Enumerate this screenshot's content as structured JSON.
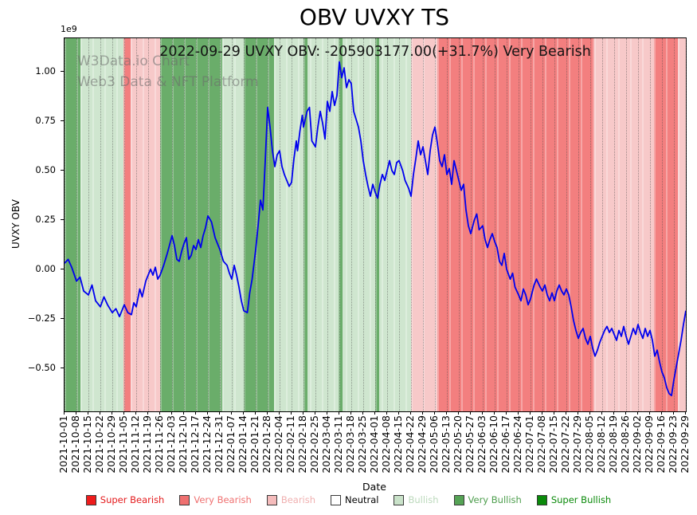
{
  "subtitle": "2022-09-29 UVXY OBV: -205903177.00(+31.7%) Very Bearish",
  "watermark": {
    "line1": "W3Data.io Chart",
    "line2": "Web3 Data & NFT Platform"
  },
  "legend": [
    {
      "label": "Super Bearish",
      "color": "#ee1c1c",
      "text_color": "#e41a1c"
    },
    {
      "label": "Very Bearish",
      "color": "#ef7070",
      "text_color": "#ef7070"
    },
    {
      "label": "Bearish",
      "color": "#f5bcbc",
      "text_color": "#f0b0b0"
    },
    {
      "label": "Neutral",
      "color": "#ffffff",
      "text_color": "#000000"
    },
    {
      "label": "Bullish",
      "color": "#c9e2c9",
      "text_color": "#bcd9bc"
    },
    {
      "label": "Very Bullish",
      "color": "#55a355",
      "text_color": "#4d9e4d"
    },
    {
      "label": "Super Bullish",
      "color": "#0a8a0a",
      "text_color": "#0a8a0a"
    }
  ],
  "chart_data": {
    "type": "line",
    "title": "OBV UVXY TS",
    "xlabel": "Date",
    "ylabel": "UVXY OBV",
    "y_unit": "1e9",
    "ylim": [
      -0.72,
      1.17
    ],
    "yticks": [
      1.0,
      0.75,
      0.5,
      0.25,
      0.0,
      -0.25,
      -0.5
    ],
    "grid": "vertical-dotted",
    "legend_position": "bottom",
    "line_color": "#0000ee",
    "x_tick_labels": [
      "2021-10-01",
      "2021-10-08",
      "2021-10-15",
      "2021-10-22",
      "2021-10-29",
      "2021-11-05",
      "2021-11-12",
      "2021-11-19",
      "2021-11-26",
      "2021-12-03",
      "2021-12-10",
      "2021-12-17",
      "2021-12-24",
      "2021-12-31",
      "2022-01-07",
      "2022-01-14",
      "2022-01-21",
      "2022-01-28",
      "2022-02-04",
      "2022-02-11",
      "2022-02-18",
      "2022-02-25",
      "2022-03-04",
      "2022-03-11",
      "2022-03-18",
      "2022-03-25",
      "2022-04-01",
      "2022-04-08",
      "2022-04-15",
      "2022-04-22",
      "2022-04-29",
      "2022-05-06",
      "2022-05-13",
      "2022-05-20",
      "2022-05-27",
      "2022-06-03",
      "2022-06-10",
      "2022-06-17",
      "2022-06-24",
      "2022-07-01",
      "2022-07-08",
      "2022-07-15",
      "2022-07-22",
      "2022-07-29",
      "2022-08-05",
      "2022-08-12",
      "2022-08-19",
      "2022-08-26",
      "2022-09-02",
      "2022-09-09",
      "2022-09-16",
      "2022-09-23",
      "2022-09-29"
    ],
    "latest": {
      "date": "2022-09-29",
      "obv": -205903177.0,
      "change_pct": 31.7,
      "sentiment": "Very Bearish"
    },
    "sentiment_colors": {
      "super_bearish": "#ee1c1c",
      "very_bearish": "#f37f7f",
      "bearish": "#f7c9c9",
      "neutral": "#ffffff",
      "bullish": "#cfe6cf",
      "very_bullish": "#6aad6a",
      "super_bullish": "#0a8a0a"
    },
    "bands": [
      {
        "start": 0.0,
        "end": 1.3,
        "sentiment": "very_bullish"
      },
      {
        "start": 1.3,
        "end": 4.9,
        "sentiment": "bullish"
      },
      {
        "start": 4.9,
        "end": 5.5,
        "sentiment": "very_bearish"
      },
      {
        "start": 5.5,
        "end": 8.0,
        "sentiment": "bearish"
      },
      {
        "start": 8.0,
        "end": 13.2,
        "sentiment": "very_bullish"
      },
      {
        "start": 13.2,
        "end": 15.0,
        "sentiment": "bullish"
      },
      {
        "start": 15.0,
        "end": 17.5,
        "sentiment": "very_bullish"
      },
      {
        "start": 17.5,
        "end": 29.0,
        "sentiment": "bullish"
      },
      {
        "start": 20.0,
        "end": 20.35,
        "sentiment": "very_bullish"
      },
      {
        "start": 22.9,
        "end": 23.25,
        "sentiment": "very_bullish"
      },
      {
        "start": 26.0,
        "end": 26.3,
        "sentiment": "very_bullish"
      },
      {
        "start": 29.0,
        "end": 31.2,
        "sentiment": "bearish"
      },
      {
        "start": 31.2,
        "end": 44.3,
        "sentiment": "very_bearish"
      },
      {
        "start": 44.3,
        "end": 49.3,
        "sentiment": "bearish"
      },
      {
        "start": 49.3,
        "end": 51.3,
        "sentiment": "very_bearish"
      },
      {
        "start": 51.3,
        "end": 52.0,
        "sentiment": "bearish"
      }
    ],
    "series": [
      {
        "name": "UVXY OBV (1e9)",
        "points": [
          [
            0,
            0.03
          ],
          [
            0.3,
            0.05
          ],
          [
            0.6,
            0.01
          ],
          [
            1,
            -0.06
          ],
          [
            1.3,
            -0.04
          ],
          [
            1.6,
            -0.11
          ],
          [
            2,
            -0.13
          ],
          [
            2.3,
            -0.08
          ],
          [
            2.6,
            -0.16
          ],
          [
            3,
            -0.19
          ],
          [
            3.3,
            -0.14
          ],
          [
            3.6,
            -0.18
          ],
          [
            4,
            -0.22
          ],
          [
            4.3,
            -0.2
          ],
          [
            4.6,
            -0.24
          ],
          [
            5,
            -0.18
          ],
          [
            5.3,
            -0.22
          ],
          [
            5.6,
            -0.23
          ],
          [
            5.8,
            -0.17
          ],
          [
            6,
            -0.19
          ],
          [
            6.3,
            -0.1
          ],
          [
            6.5,
            -0.14
          ],
          [
            6.8,
            -0.06
          ],
          [
            7,
            -0.03
          ],
          [
            7.2,
            0
          ],
          [
            7.4,
            -0.03
          ],
          [
            7.6,
            0.01
          ],
          [
            7.8,
            -0.05
          ],
          [
            8,
            -0.03
          ],
          [
            8.3,
            0.02
          ],
          [
            8.6,
            0.08
          ],
          [
            9,
            0.17
          ],
          [
            9.2,
            0.12
          ],
          [
            9.4,
            0.05
          ],
          [
            9.6,
            0.04
          ],
          [
            9.8,
            0.09
          ],
          [
            10,
            0.13
          ],
          [
            10.2,
            0.16
          ],
          [
            10.4,
            0.05
          ],
          [
            10.6,
            0.07
          ],
          [
            10.8,
            0.12
          ],
          [
            11,
            0.1
          ],
          [
            11.2,
            0.15
          ],
          [
            11.4,
            0.11
          ],
          [
            11.6,
            0.17
          ],
          [
            11.8,
            0.21
          ],
          [
            12,
            0.27
          ],
          [
            12.3,
            0.24
          ],
          [
            12.6,
            0.16
          ],
          [
            13,
            0.1
          ],
          [
            13.3,
            0.04
          ],
          [
            13.6,
            0.02
          ],
          [
            13.8,
            -0.02
          ],
          [
            14,
            -0.05
          ],
          [
            14.2,
            0.02
          ],
          [
            14.4,
            -0.03
          ],
          [
            14.6,
            -0.09
          ],
          [
            14.8,
            -0.16
          ],
          [
            15,
            -0.21
          ],
          [
            15.3,
            -0.22
          ],
          [
            15.5,
            -0.12
          ],
          [
            15.7,
            -0.05
          ],
          [
            16,
            0.1
          ],
          [
            16.2,
            0.22
          ],
          [
            16.4,
            0.35
          ],
          [
            16.6,
            0.3
          ],
          [
            16.8,
            0.55
          ],
          [
            17,
            0.82
          ],
          [
            17.2,
            0.72
          ],
          [
            17.4,
            0.6
          ],
          [
            17.6,
            0.52
          ],
          [
            17.8,
            0.58
          ],
          [
            18,
            0.6
          ],
          [
            18.2,
            0.52
          ],
          [
            18.4,
            0.48
          ],
          [
            18.6,
            0.45
          ],
          [
            18.8,
            0.42
          ],
          [
            19,
            0.44
          ],
          [
            19.2,
            0.56
          ],
          [
            19.4,
            0.65
          ],
          [
            19.5,
            0.6
          ],
          [
            19.7,
            0.7
          ],
          [
            19.9,
            0.78
          ],
          [
            20,
            0.72
          ],
          [
            20.3,
            0.8
          ],
          [
            20.5,
            0.82
          ],
          [
            20.7,
            0.65
          ],
          [
            21,
            0.62
          ],
          [
            21.2,
            0.72
          ],
          [
            21.4,
            0.8
          ],
          [
            21.6,
            0.74
          ],
          [
            21.8,
            0.66
          ],
          [
            22,
            0.85
          ],
          [
            22.2,
            0.8
          ],
          [
            22.4,
            0.9
          ],
          [
            22.6,
            0.83
          ],
          [
            22.8,
            0.88
          ],
          [
            23,
            1.05
          ],
          [
            23.2,
            0.97
          ],
          [
            23.4,
            1.02
          ],
          [
            23.6,
            0.92
          ],
          [
            23.8,
            0.96
          ],
          [
            24,
            0.94
          ],
          [
            24.2,
            0.8
          ],
          [
            24.4,
            0.76
          ],
          [
            24.6,
            0.72
          ],
          [
            24.8,
            0.65
          ],
          [
            25,
            0.55
          ],
          [
            25.2,
            0.48
          ],
          [
            25.4,
            0.42
          ],
          [
            25.6,
            0.37
          ],
          [
            25.8,
            0.43
          ],
          [
            26,
            0.39
          ],
          [
            26.2,
            0.36
          ],
          [
            26.4,
            0.43
          ],
          [
            26.6,
            0.48
          ],
          [
            26.8,
            0.45
          ],
          [
            27,
            0.5
          ],
          [
            27.2,
            0.55
          ],
          [
            27.4,
            0.5
          ],
          [
            27.6,
            0.48
          ],
          [
            27.8,
            0.54
          ],
          [
            28,
            0.55
          ],
          [
            28.3,
            0.5
          ],
          [
            28.5,
            0.45
          ],
          [
            28.8,
            0.41
          ],
          [
            29,
            0.37
          ],
          [
            29.2,
            0.48
          ],
          [
            29.4,
            0.56
          ],
          [
            29.6,
            0.65
          ],
          [
            29.8,
            0.58
          ],
          [
            30,
            0.62
          ],
          [
            30.2,
            0.55
          ],
          [
            30.4,
            0.48
          ],
          [
            30.6,
            0.6
          ],
          [
            30.8,
            0.68
          ],
          [
            31,
            0.72
          ],
          [
            31.2,
            0.64
          ],
          [
            31.4,
            0.55
          ],
          [
            31.6,
            0.52
          ],
          [
            31.8,
            0.58
          ],
          [
            32,
            0.48
          ],
          [
            32.2,
            0.51
          ],
          [
            32.4,
            0.43
          ],
          [
            32.6,
            0.55
          ],
          [
            32.8,
            0.5
          ],
          [
            33,
            0.45
          ],
          [
            33.2,
            0.4
          ],
          [
            33.4,
            0.43
          ],
          [
            33.6,
            0.3
          ],
          [
            33.8,
            0.22
          ],
          [
            34,
            0.18
          ],
          [
            34.3,
            0.25
          ],
          [
            34.5,
            0.28
          ],
          [
            34.7,
            0.2
          ],
          [
            35,
            0.22
          ],
          [
            35.2,
            0.15
          ],
          [
            35.4,
            0.11
          ],
          [
            35.6,
            0.15
          ],
          [
            35.8,
            0.18
          ],
          [
            36,
            0.14
          ],
          [
            36.2,
            0.11
          ],
          [
            36.4,
            0.04
          ],
          [
            36.6,
            0.02
          ],
          [
            36.8,
            0.08
          ],
          [
            37,
            0
          ],
          [
            37.3,
            -0.05
          ],
          [
            37.5,
            -0.02
          ],
          [
            37.7,
            -0.09
          ],
          [
            38,
            -0.13
          ],
          [
            38.2,
            -0.16
          ],
          [
            38.4,
            -0.1
          ],
          [
            38.6,
            -0.13
          ],
          [
            38.8,
            -0.18
          ],
          [
            39,
            -0.15
          ],
          [
            39.3,
            -0.08
          ],
          [
            39.5,
            -0.05
          ],
          [
            39.8,
            -0.09
          ],
          [
            40,
            -0.11
          ],
          [
            40.2,
            -0.08
          ],
          [
            40.4,
            -0.13
          ],
          [
            40.6,
            -0.16
          ],
          [
            40.8,
            -0.12
          ],
          [
            41,
            -0.16
          ],
          [
            41.2,
            -0.11
          ],
          [
            41.4,
            -0.08
          ],
          [
            41.6,
            -0.11
          ],
          [
            41.8,
            -0.13
          ],
          [
            42,
            -0.1
          ],
          [
            42.2,
            -0.13
          ],
          [
            42.4,
            -0.19
          ],
          [
            42.6,
            -0.26
          ],
          [
            42.8,
            -0.31
          ],
          [
            43,
            -0.35
          ],
          [
            43.2,
            -0.32
          ],
          [
            43.4,
            -0.3
          ],
          [
            43.6,
            -0.35
          ],
          [
            43.8,
            -0.38
          ],
          [
            44,
            -0.34
          ],
          [
            44.2,
            -0.4
          ],
          [
            44.4,
            -0.44
          ],
          [
            44.6,
            -0.41
          ],
          [
            44.8,
            -0.37
          ],
          [
            45,
            -0.34
          ],
          [
            45.2,
            -0.31
          ],
          [
            45.4,
            -0.29
          ],
          [
            45.6,
            -0.32
          ],
          [
            45.8,
            -0.3
          ],
          [
            46,
            -0.33
          ],
          [
            46.2,
            -0.36
          ],
          [
            46.4,
            -0.31
          ],
          [
            46.6,
            -0.34
          ],
          [
            46.8,
            -0.29
          ],
          [
            47,
            -0.34
          ],
          [
            47.2,
            -0.38
          ],
          [
            47.4,
            -0.34
          ],
          [
            47.6,
            -0.3
          ],
          [
            47.8,
            -0.33
          ],
          [
            48,
            -0.28
          ],
          [
            48.2,
            -0.32
          ],
          [
            48.4,
            -0.35
          ],
          [
            48.6,
            -0.3
          ],
          [
            48.8,
            -0.34
          ],
          [
            49,
            -0.31
          ],
          [
            49.2,
            -0.36
          ],
          [
            49.4,
            -0.44
          ],
          [
            49.6,
            -0.41
          ],
          [
            49.8,
            -0.47
          ],
          [
            50,
            -0.52
          ],
          [
            50.2,
            -0.55
          ],
          [
            50.4,
            -0.6
          ],
          [
            50.6,
            -0.63
          ],
          [
            50.8,
            -0.64
          ],
          [
            51,
            -0.56
          ],
          [
            51.3,
            -0.46
          ],
          [
            51.6,
            -0.36
          ],
          [
            51.8,
            -0.28
          ],
          [
            52,
            -0.21
          ]
        ]
      }
    ]
  }
}
